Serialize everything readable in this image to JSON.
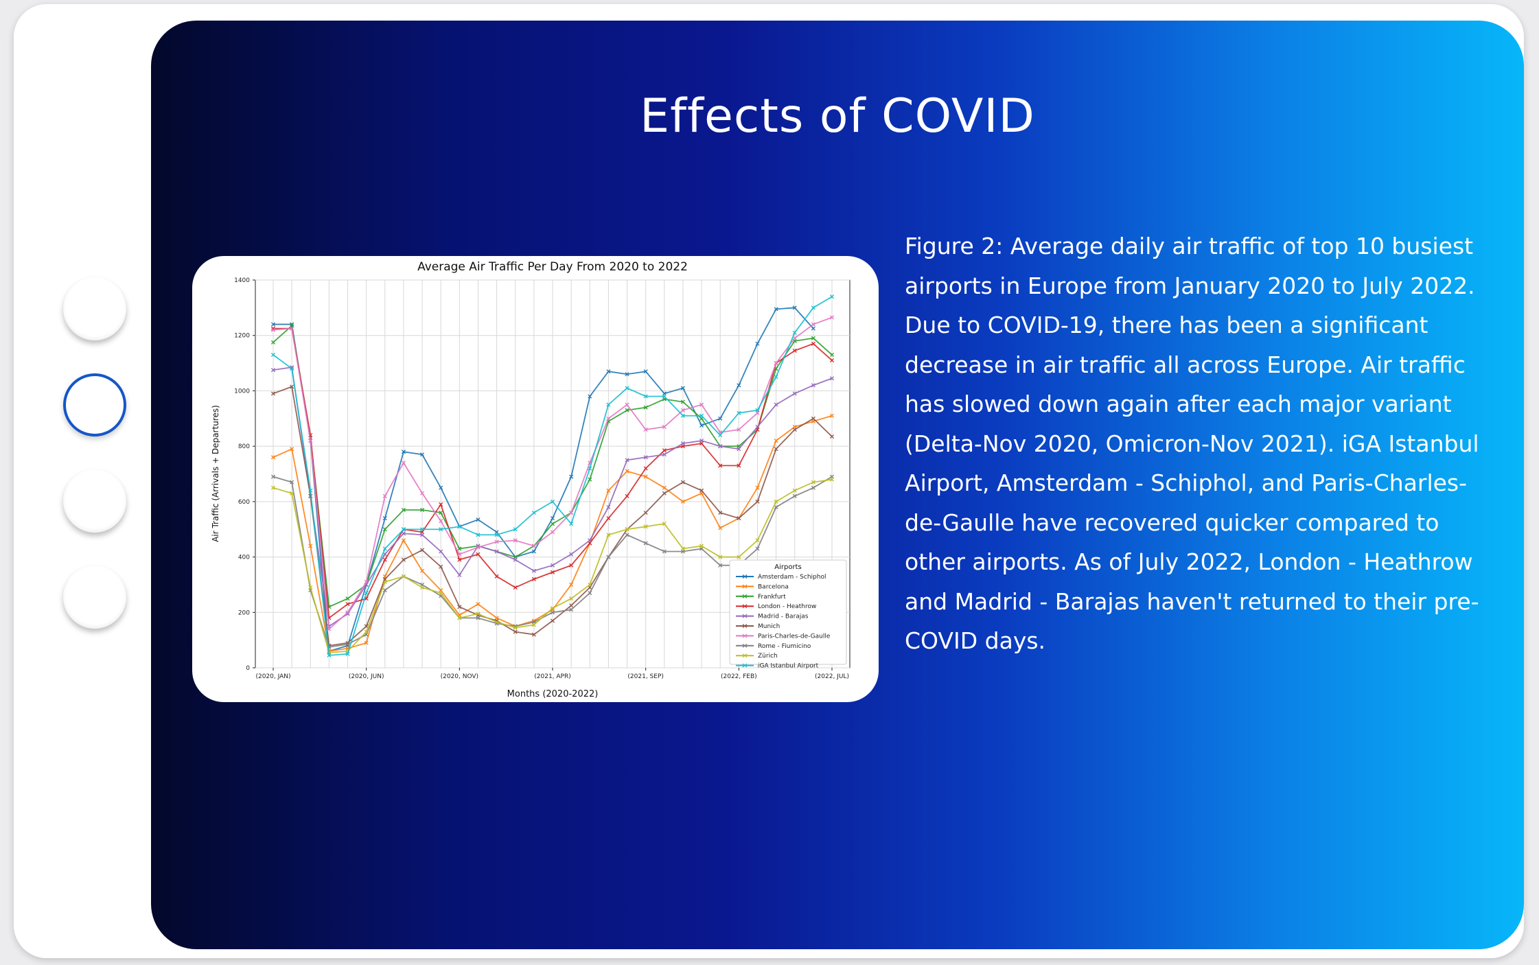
{
  "slide": {
    "title": "Effects of COVID",
    "caption": "Figure 2: Average daily air traffic of top 10 busiest airports in Europe from January 2020 to July 2022. Due to COVID-19, there has been a significant decrease in air traffic all across Europe. Air traffic has slowed down again after each major variant (Delta-Nov 2020, Omicron-Nov 2021). iGA Istanbul Airport, Amsterdam - Schiphol, and Paris-Charles-de-Gaulle have recovered quicker compared to other airports. As of July 2022, London - Heathrow and Madrid - Barajas haven't returned to their pre-COVID days."
  },
  "nav": {
    "items": 4,
    "active_index": 1
  },
  "chart_data": {
    "type": "line",
    "title": "Average Air Traffic Per Day From 2020 to 2022",
    "xlabel": "Months (2020-2022)",
    "ylabel": "Air Traffic (Arrivals + Departures)",
    "ylim": [
      0,
      1400
    ],
    "yticks": [
      0,
      200,
      400,
      600,
      800,
      1000,
      1200,
      1400
    ],
    "x": [
      "2020-01",
      "2020-02",
      "2020-03",
      "2020-04",
      "2020-05",
      "2020-06",
      "2020-07",
      "2020-08",
      "2020-09",
      "2020-10",
      "2020-11",
      "2020-12",
      "2021-01",
      "2021-02",
      "2021-03",
      "2021-04",
      "2021-05",
      "2021-06",
      "2021-07",
      "2021-08",
      "2021-09",
      "2021-10",
      "2021-11",
      "2021-12",
      "2022-01",
      "2022-02",
      "2022-03",
      "2022-04",
      "2022-05",
      "2022-06",
      "2022-07"
    ],
    "xtick_labels": [
      {
        "index": 0,
        "label": "(2020, JAN)"
      },
      {
        "index": 5,
        "label": "(2020, JUN)"
      },
      {
        "index": 10,
        "label": "(2020, NOV)"
      },
      {
        "index": 15,
        "label": "(2021, APR)"
      },
      {
        "index": 20,
        "label": "(2021, SEP)"
      },
      {
        "index": 25,
        "label": "(2022, FEB)"
      },
      {
        "index": 30,
        "label": "(2022, JUL)"
      }
    ],
    "grid": true,
    "legend_title": "Airports",
    "legend_position": "lower-right",
    "series": [
      {
        "name": "Amsterdam - Schiphol",
        "color": "#1f77b4",
        "values": [
          1240,
          1240,
          820,
          60,
          80,
          300,
          540,
          780,
          770,
          650,
          510,
          535,
          490,
          400,
          420,
          540,
          690,
          980,
          1070,
          1060,
          1070,
          990,
          1010,
          875,
          900,
          1020,
          1170,
          1295,
          1300,
          1225,
          null
        ]
      },
      {
        "name": "Barcelona",
        "color": "#ff7f0e",
        "values": [
          760,
          790,
          440,
          60,
          70,
          90,
          330,
          460,
          350,
          280,
          190,
          230,
          180,
          150,
          170,
          210,
          300,
          450,
          640,
          710,
          690,
          650,
          600,
          630,
          505,
          540,
          650,
          820,
          870,
          890,
          910
        ]
      },
      {
        "name": "Frankfurt",
        "color": "#2ca02c",
        "values": [
          1175,
          1235,
          830,
          220,
          250,
          300,
          500,
          570,
          570,
          560,
          430,
          440,
          420,
          400,
          440,
          520,
          560,
          680,
          890,
          930,
          940,
          970,
          960,
          900,
          800,
          800,
          860,
          1080,
          1180,
          1190,
          1130
        ]
      },
      {
        "name": "London - Heathrow",
        "color": "#d62728",
        "values": [
          1225,
          1225,
          840,
          180,
          230,
          250,
          390,
          500,
          490,
          590,
          390,
          410,
          330,
          290,
          320,
          345,
          370,
          450,
          540,
          620,
          720,
          785,
          800,
          810,
          730,
          730,
          860,
          1100,
          1145,
          1170,
          1110
        ]
      },
      {
        "name": "Madrid - Barajas",
        "color": "#9467bd",
        "values": [
          1075,
          1085,
          620,
          150,
          195,
          300,
          410,
          485,
          480,
          420,
          335,
          440,
          420,
          390,
          350,
          370,
          410,
          460,
          580,
          750,
          760,
          770,
          810,
          820,
          800,
          790,
          870,
          950,
          990,
          1020,
          1045
        ]
      },
      {
        "name": "Munich",
        "color": "#8c564b",
        "values": [
          990,
          1015,
          620,
          80,
          90,
          150,
          320,
          390,
          425,
          365,
          220,
          190,
          170,
          130,
          120,
          170,
          225,
          290,
          400,
          500,
          560,
          630,
          670,
          640,
          560,
          540,
          600,
          790,
          860,
          900,
          835
        ]
      },
      {
        "name": "Paris-Charles-de-Gaulle",
        "color": "#e377c2",
        "values": [
          1220,
          1225,
          820,
          140,
          200,
          310,
          620,
          740,
          630,
          530,
          410,
          435,
          455,
          460,
          440,
          490,
          560,
          740,
          900,
          950,
          860,
          870,
          930,
          950,
          850,
          860,
          920,
          1100,
          1190,
          1240,
          1265
        ]
      },
      {
        "name": "Rome - Fiumicino",
        "color": "#7f7f7f",
        "values": [
          690,
          670,
          280,
          75,
          85,
          120,
          280,
          330,
          300,
          260,
          180,
          180,
          160,
          150,
          165,
          200,
          210,
          270,
          400,
          480,
          450,
          420,
          420,
          430,
          370,
          370,
          430,
          580,
          620,
          650,
          690
        ]
      },
      {
        "name": "Zürich",
        "color": "#bcbd22",
        "values": [
          650,
          630,
          290,
          55,
          60,
          130,
          310,
          330,
          290,
          270,
          180,
          195,
          165,
          145,
          155,
          215,
          250,
          300,
          480,
          500,
          510,
          520,
          430,
          440,
          400,
          400,
          460,
          600,
          640,
          670,
          680
        ]
      },
      {
        "name": "iGA Istanbul Airport",
        "color": "#17becf",
        "values": [
          1130,
          1080,
          640,
          45,
          50,
          270,
          430,
          500,
          500,
          500,
          510,
          480,
          480,
          500,
          560,
          600,
          520,
          720,
          950,
          1010,
          980,
          980,
          910,
          910,
          840,
          920,
          930,
          1050,
          1210,
          1300,
          1340
        ]
      }
    ]
  }
}
